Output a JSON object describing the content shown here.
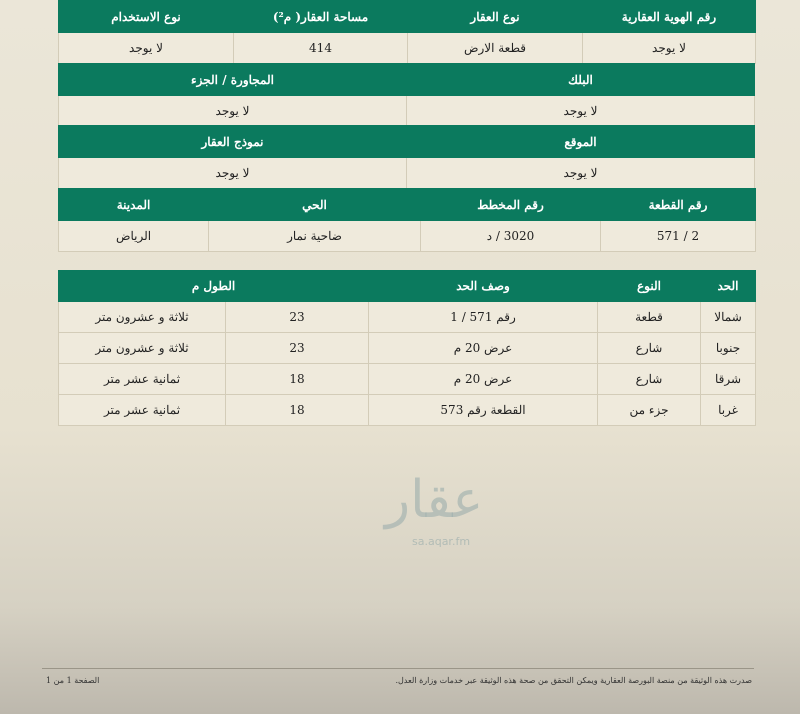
{
  "table1": {
    "headers": [
      "رقم الهوية العقارية",
      "نوع العقار",
      "مساحة العقار( م²)",
      "نوع الاستخدام"
    ],
    "values": [
      "لا يوجد",
      "قطعة الارض",
      "414",
      "لا يوجد"
    ]
  },
  "table2": {
    "headers": [
      "البلك",
      "المجاورة / الجزء"
    ],
    "values": [
      "لا يوجد",
      "لا يوجد"
    ]
  },
  "table3": {
    "headers": [
      "الموقع",
      "نموذج العقار"
    ],
    "values": [
      "لا يوجد",
      "لا يوجد"
    ]
  },
  "table4": {
    "headers": [
      "رقم القطعة",
      "رقم المخطط",
      "الحي",
      "المدينة"
    ],
    "values": [
      "2 / 571",
      "3020 / د",
      "ضاحية نمار",
      "الرياض"
    ]
  },
  "boundaries": {
    "headers": [
      "الحد",
      "النوع",
      "وصف الحد",
      "الطول م"
    ],
    "rows": [
      [
        "شمالا",
        "قطعة",
        "رقم 571 / 1",
        "23",
        "ثلاثة و عشرون متر"
      ],
      [
        "جنوبا",
        "شارع",
        "عرض 20 م",
        "23",
        "ثلاثة و عشرون متر"
      ],
      [
        "شرقا",
        "شارع",
        "عرض 20 م",
        "18",
        "ثمانية عشر متر"
      ],
      [
        "غربا",
        "جزء من",
        "القطعة رقم 573",
        "18",
        "ثمانية عشر متر"
      ]
    ]
  },
  "watermark": {
    "logo": "عقار",
    "url": "sa.aqar.fm"
  },
  "footer": {
    "note": "صدرت هذه الوثيقة من منصة البورصة العقارية ويمكن التحقق من صحة هذه الوثيقة عبر خدمات وزارة العدل.",
    "page": "الصفحة 1 من 1"
  },
  "colors": {
    "header": "#0b7a5e",
    "background": "#ebe6d8"
  }
}
